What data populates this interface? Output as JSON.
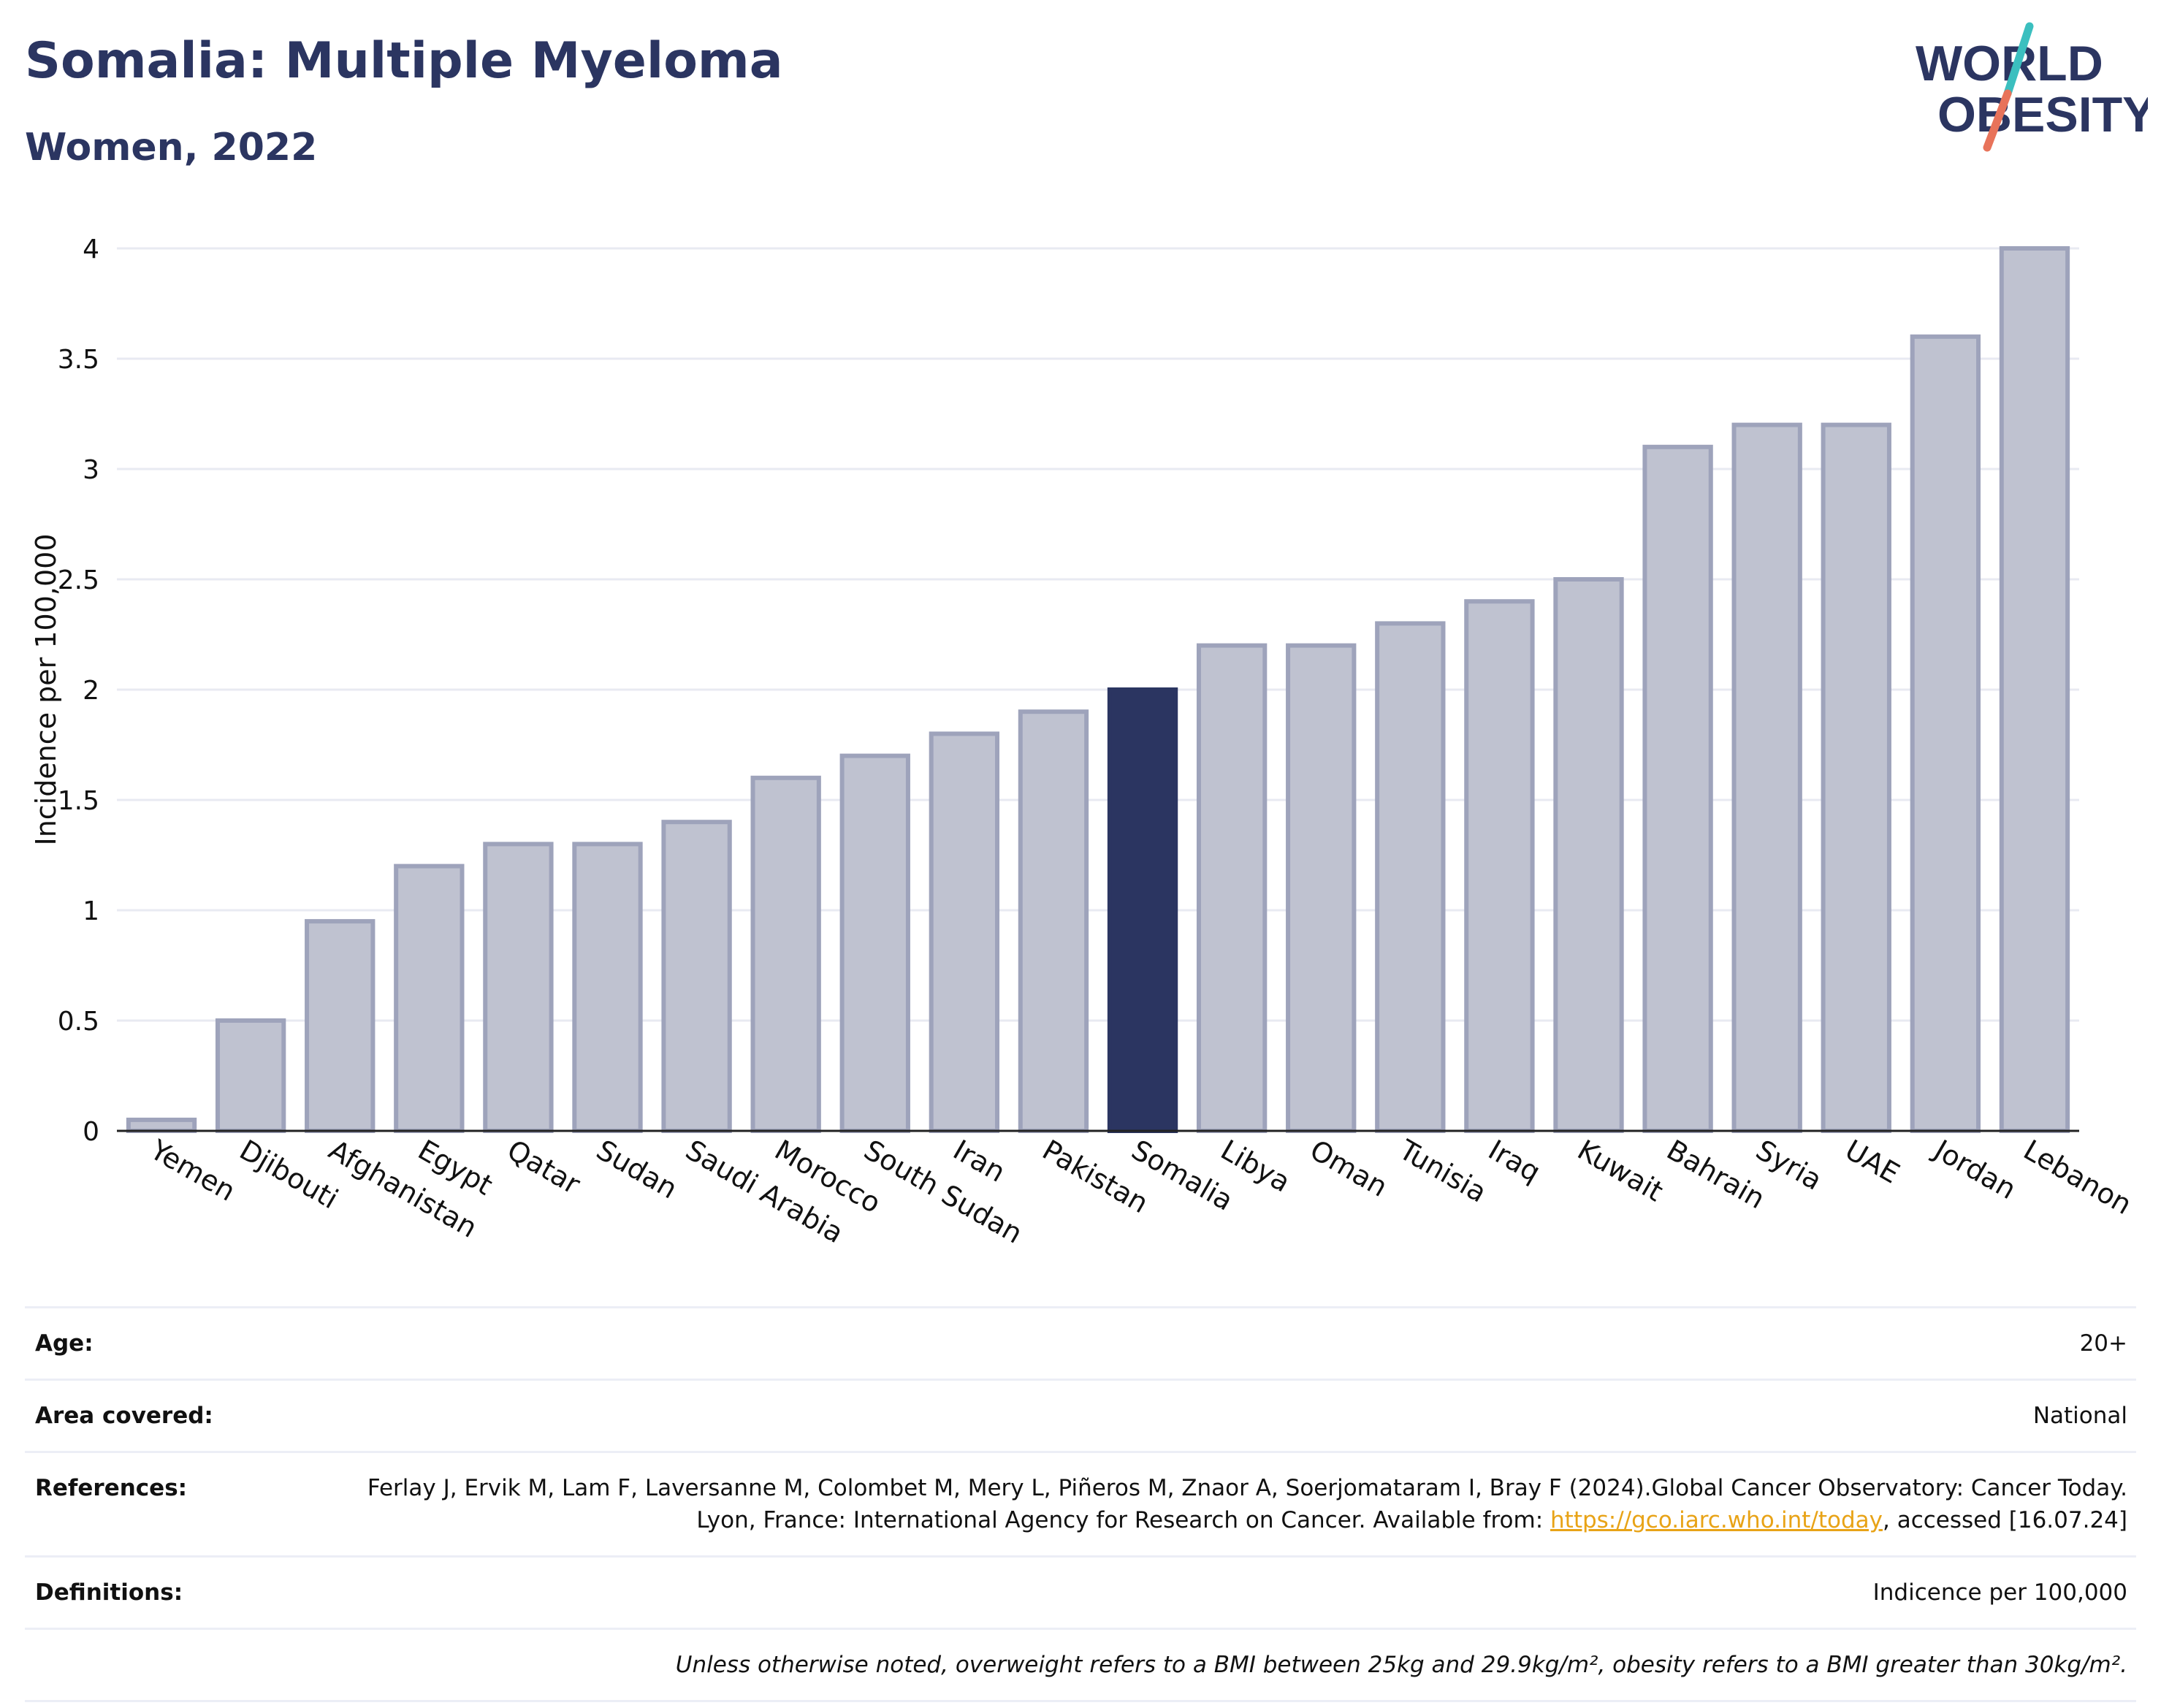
{
  "header": {
    "title": "Somalia: Multiple Myeloma",
    "subtitle": "Women, 2022"
  },
  "logo": {
    "line1": "WORLD",
    "line2": "OBESITY",
    "colors": {
      "text": "#2b3561",
      "slash_top": "#3bbfbf",
      "slash_bottom": "#e8735a"
    }
  },
  "chart_data": {
    "type": "bar",
    "categories": [
      "Yemen",
      "Djibouti",
      "Afghanistan",
      "Egypt",
      "Qatar",
      "Sudan",
      "Saudi Arabia",
      "Morocco",
      "South Sudan",
      "Iran",
      "Pakistan",
      "Somalia",
      "Libya",
      "Oman",
      "Tunisia",
      "Iraq",
      "Kuwait",
      "Bahrain",
      "Syria",
      "UAE",
      "Jordan",
      "Lebanon"
    ],
    "values": [
      0.05,
      0.5,
      0.95,
      1.2,
      1.3,
      1.3,
      1.4,
      1.6,
      1.7,
      1.8,
      1.9,
      2.0,
      2.2,
      2.2,
      2.3,
      2.4,
      2.5,
      3.1,
      3.2,
      3.2,
      3.6,
      4.0
    ],
    "highlight": "Somalia",
    "ylabel": "Incidence per 100,000",
    "xlabel": "",
    "ylim": [
      0,
      4
    ],
    "yticks": [
      0,
      0.5,
      1,
      1.5,
      2,
      2.5,
      3,
      3.5,
      4
    ],
    "ytick_labels": [
      "0",
      "0.5",
      "1",
      "1.5",
      "2",
      "2.5",
      "3",
      "3.5",
      "4"
    ],
    "grid": true,
    "colors": {
      "bar_fill": "#bfc2d0",
      "bar_stroke": "#9ea3bb",
      "highlight_fill": "#2b3561",
      "grid": "#e8eaf2",
      "axis": "#222222"
    }
  },
  "info": {
    "age_label": "Age:",
    "age_value": "20+",
    "area_label": "Area covered:",
    "area_value": "National",
    "references_label": "References:",
    "references_text_1": "Ferlay J, Ervik M, Lam F, Laversanne M, Colombet M, Mery L, Piñeros M, Znaor A, Soerjomataram I, Bray F (2024).Global Cancer Observatory: Cancer Today. Lyon, France: International Agency for Research on Cancer. Available from: ",
    "references_link": "https://gco.iarc.who.int/today",
    "references_text_2": ", accessed [16.07.24]",
    "definitions_label": "Definitions:",
    "definitions_value": "Indicence per 100,000",
    "note": "Unless otherwise noted, overweight refers to a BMI between 25kg and 29.9kg/m², obesity refers to a BMI greater than 30kg/m²."
  }
}
